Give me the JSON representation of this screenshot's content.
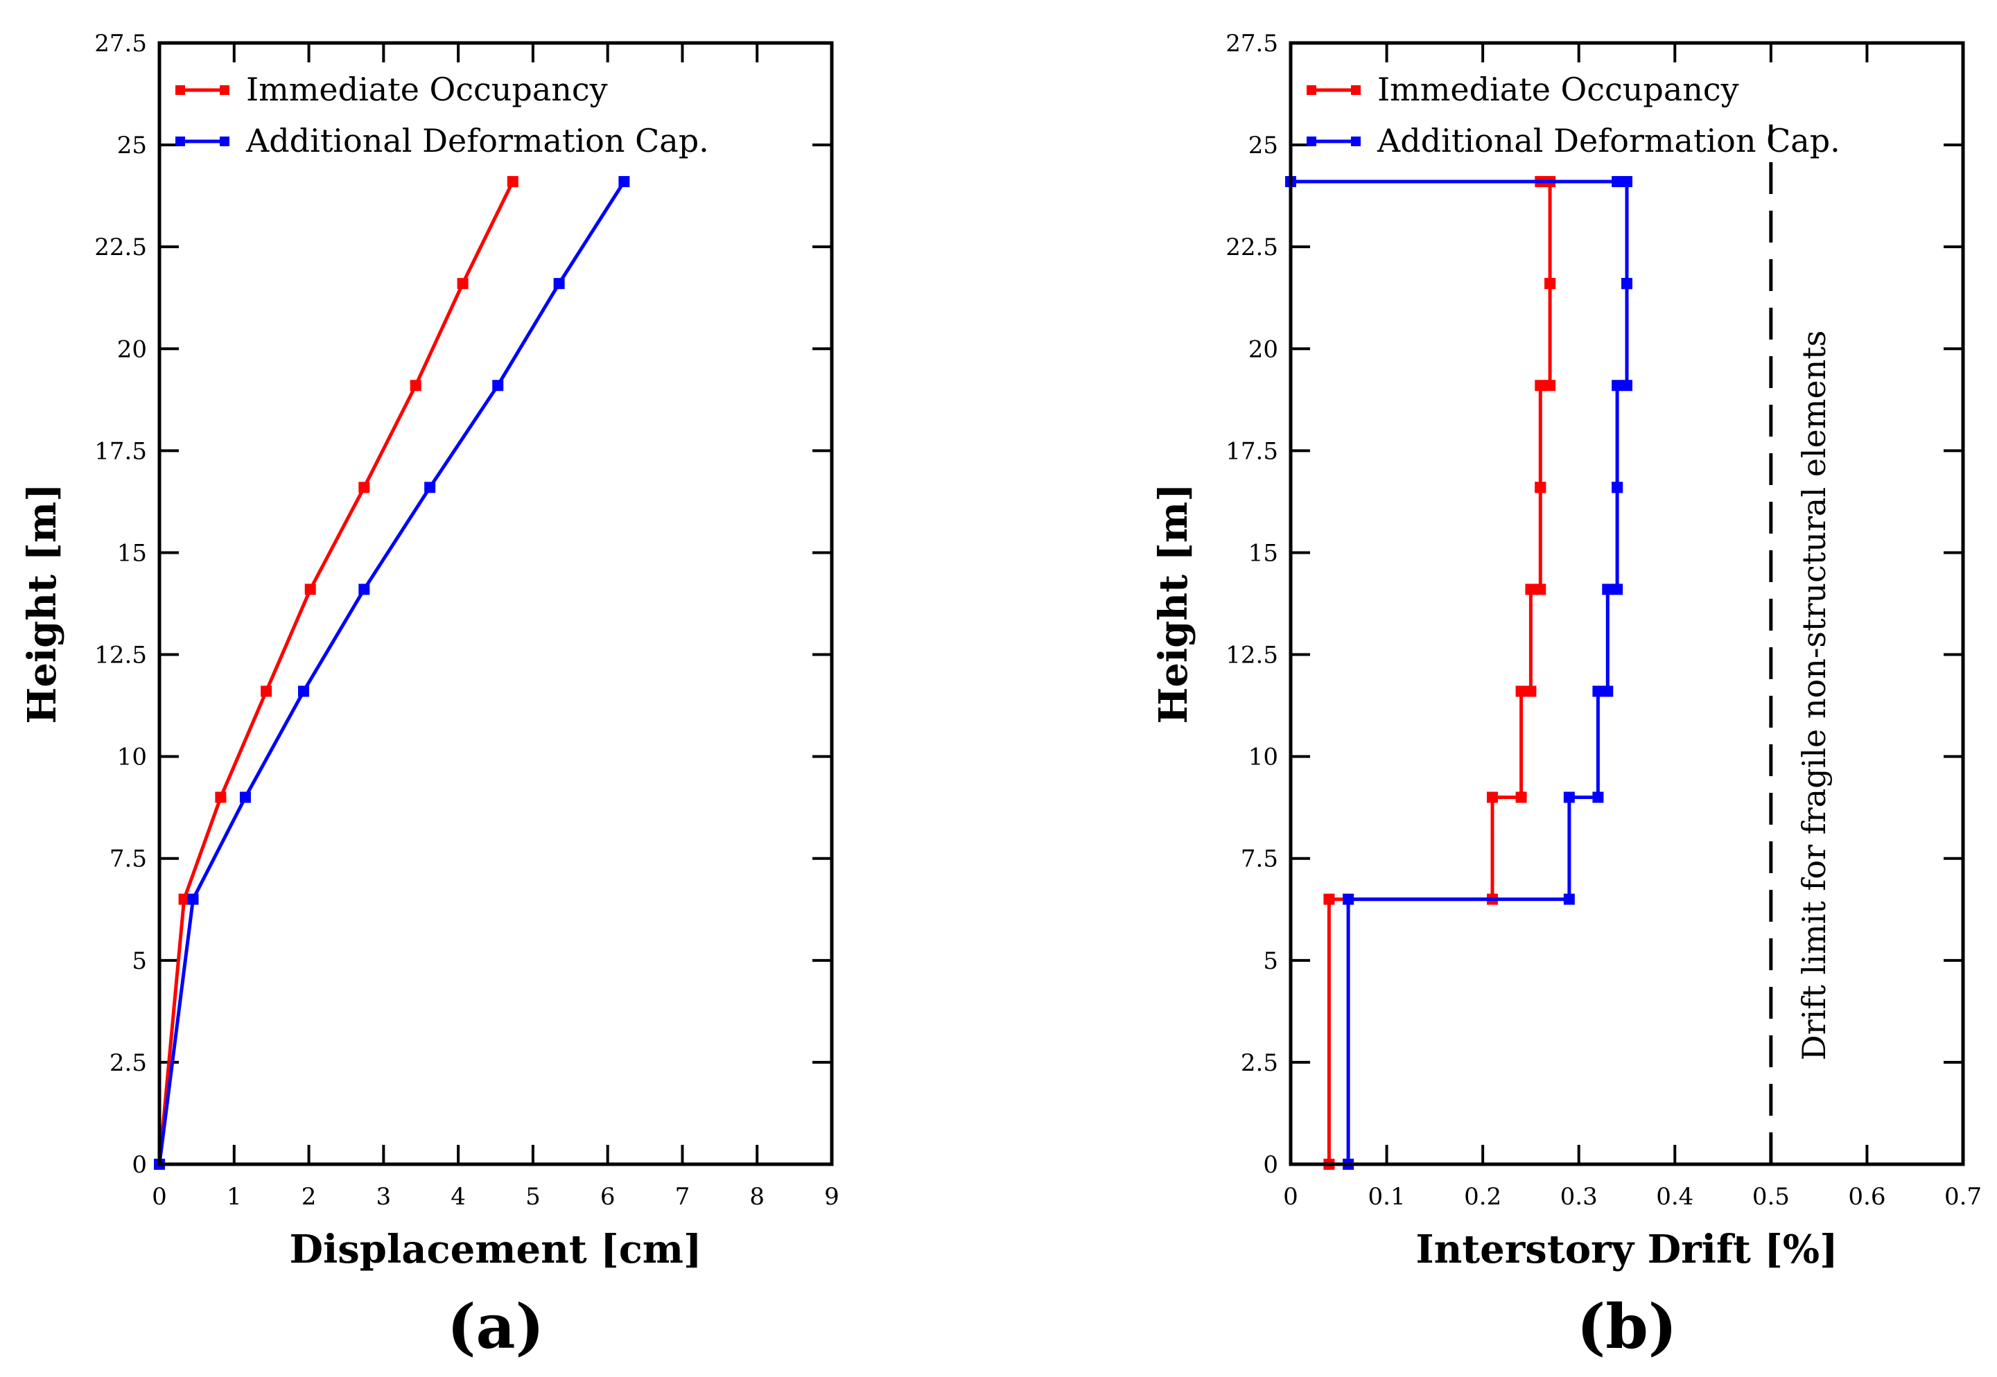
{
  "chart_data": [
    {
      "type": "line",
      "panel_label": "(a)",
      "xlabel": "Displacement [cm]",
      "ylabel": "Height [m]",
      "xlim": [
        0,
        9
      ],
      "ylim": [
        0,
        27.5
      ],
      "xticks": [
        "0",
        "1",
        "2",
        "3",
        "4",
        "5",
        "6",
        "7",
        "8",
        "9"
      ],
      "yticks": [
        "0",
        "2.5",
        "5",
        "7.5",
        "10",
        "12.5",
        "15",
        "17.5",
        "20",
        "22.5",
        "25",
        "27.5"
      ],
      "legend_position": "top-left",
      "series": [
        {
          "name": "Immediate Occupancy",
          "color": "#ff0000",
          "x": [
            0,
            0.33,
            0.82,
            1.43,
            2.02,
            2.74,
            3.43,
            4.06,
            4.73
          ],
          "y": [
            0,
            6.5,
            9.0,
            11.6,
            14.1,
            16.6,
            19.1,
            21.6,
            24.1
          ]
        },
        {
          "name": "Additional Deformation Cap.",
          "color": "#0000ff",
          "x": [
            0,
            0.45,
            1.15,
            1.93,
            2.74,
            3.62,
            4.53,
            5.35,
            6.22
          ],
          "y": [
            0,
            6.5,
            9.0,
            11.6,
            14.1,
            16.6,
            19.1,
            21.6,
            24.1
          ]
        }
      ]
    },
    {
      "type": "line",
      "panel_label": "(b)",
      "xlabel": "Interstory Drift [%]",
      "ylabel": "Height [m]",
      "xlim": [
        0,
        0.7
      ],
      "ylim": [
        0,
        27.5
      ],
      "xticks": [
        "0",
        "0.1",
        "0.2",
        "0.3",
        "0.4",
        "0.5",
        "0.6",
        "0.7"
      ],
      "yticks": [
        "0",
        "2.5",
        "5",
        "7.5",
        "10",
        "12.5",
        "15",
        "17.5",
        "20",
        "22.5",
        "25",
        "27.5"
      ],
      "legend_position": "top-left",
      "reference_line": {
        "x": 0.5,
        "style": "dashed",
        "label": "Drift limit for fragile non-structural elements"
      },
      "series": [
        {
          "name": "Immediate Occupancy",
          "color": "#ff0000",
          "storeys": [
            [
              0,
              6.5
            ],
            [
              6.5,
              9.0
            ],
            [
              9.0,
              11.6
            ],
            [
              11.6,
              14.1
            ],
            [
              14.1,
              16.6
            ],
            [
              16.6,
              19.1
            ],
            [
              19.1,
              21.6
            ],
            [
              21.6,
              24.1
            ]
          ],
          "drift": [
            0.04,
            0.21,
            0.24,
            0.25,
            0.26,
            0.26,
            0.27,
            0.27
          ],
          "roof_drift": 0.26
        },
        {
          "name": "Additional Deformation Cap.",
          "color": "#0000ff",
          "storeys": [
            [
              0,
              6.5
            ],
            [
              6.5,
              9.0
            ],
            [
              9.0,
              11.6
            ],
            [
              11.6,
              14.1
            ],
            [
              14.1,
              16.6
            ],
            [
              16.6,
              19.1
            ],
            [
              19.1,
              21.6
            ],
            [
              21.6,
              24.1
            ]
          ],
          "drift": [
            0.06,
            0.29,
            0.32,
            0.33,
            0.34,
            0.34,
            0.35,
            0.35
          ],
          "roof_drift": 0.34,
          "roof_end": 0
        }
      ]
    }
  ]
}
